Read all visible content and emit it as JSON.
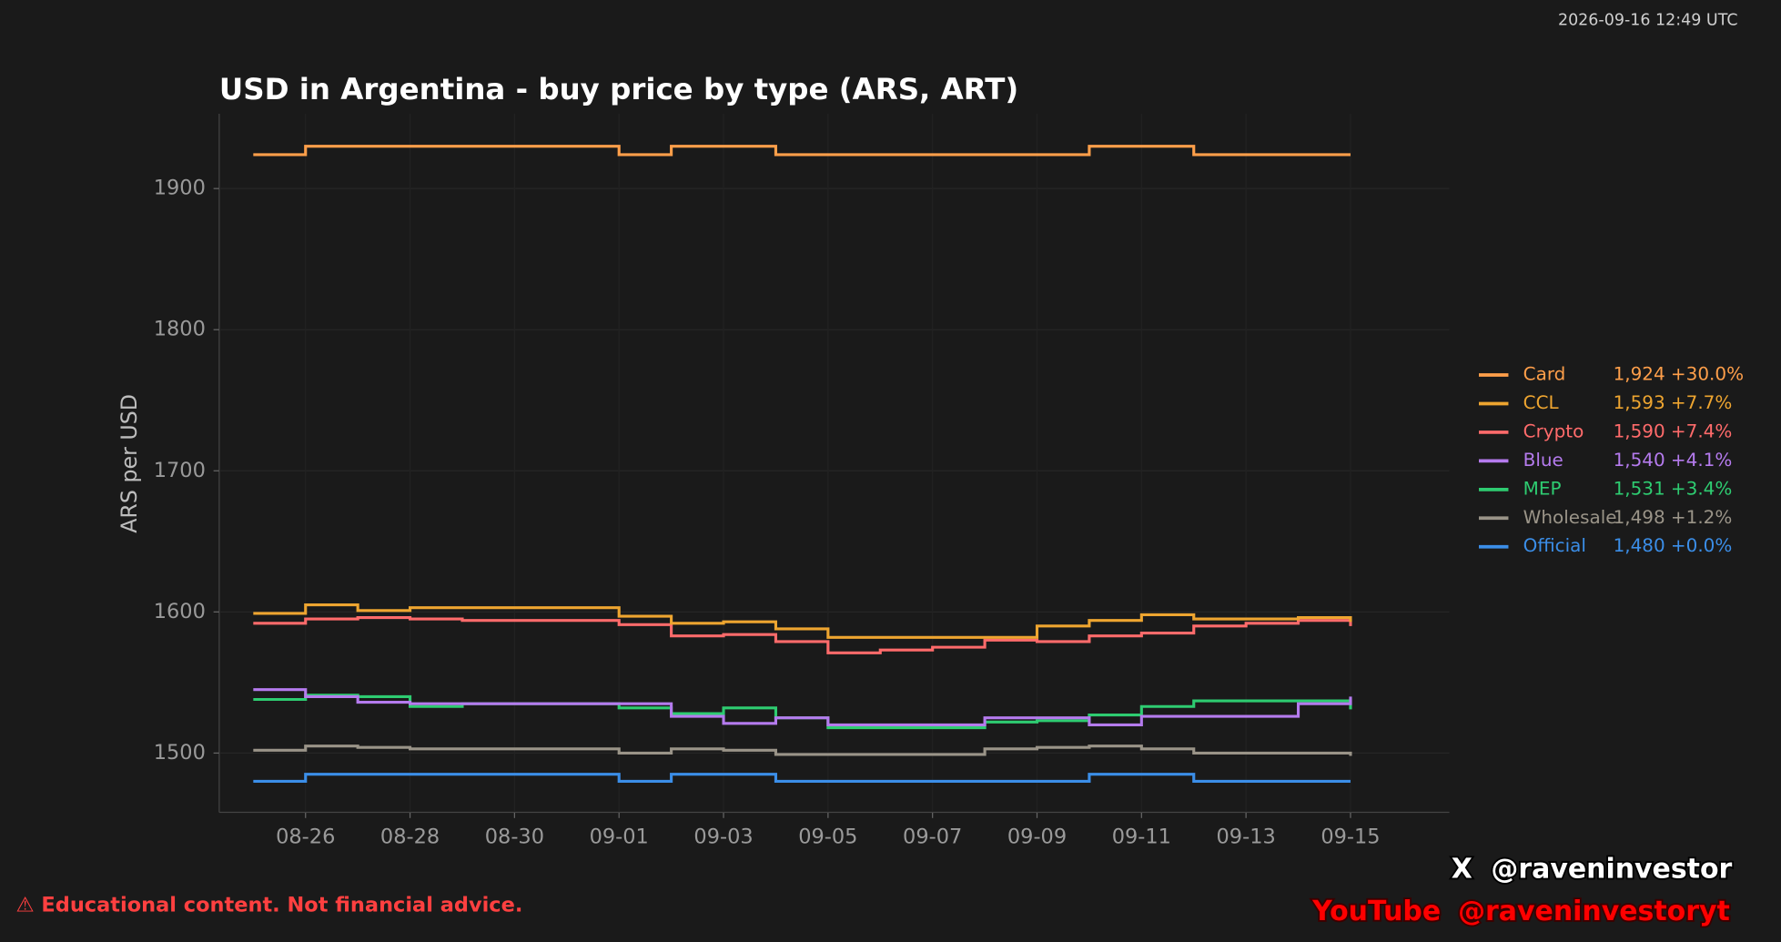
{
  "timestamp": "2026-09-16 12:49 UTC",
  "chart_data": {
    "type": "line",
    "step": true,
    "title": "USD in Argentina - buy price by type (ARS, ART)",
    "ylabel": "ARS per USD",
    "x": [
      "08-25",
      "08-26",
      "08-27",
      "08-28",
      "08-29",
      "08-30",
      "08-31",
      "09-01",
      "09-02",
      "09-03",
      "09-04",
      "09-05",
      "09-06",
      "09-07",
      "09-08",
      "09-09",
      "09-10",
      "09-11",
      "09-12",
      "09-13",
      "09-14",
      "09-15"
    ],
    "xlim": [
      "08-25",
      "09-16"
    ],
    "xticks": [
      "08-26",
      "08-28",
      "08-30",
      "09-01",
      "09-03",
      "09-05",
      "09-07",
      "09-09",
      "09-11",
      "09-13",
      "09-15"
    ],
    "ylim": [
      1458,
      1953
    ],
    "yticks": [
      1500,
      1600,
      1700,
      1800,
      1900
    ],
    "grid": true,
    "legend": "right",
    "series": [
      {
        "name": "Card",
        "color": "#ff9f4a",
        "value_label": "1,924",
        "change_label": "+30.0%",
        "values": [
          1924,
          1930,
          1930,
          1930,
          1930,
          1930,
          1930,
          1924,
          1930,
          1930,
          1924,
          1924,
          1924,
          1924,
          1924,
          1924,
          1930,
          1930,
          1924,
          1924,
          1924,
          1924
        ]
      },
      {
        "name": "CCL",
        "color": "#eea530",
        "value_label": "1,593",
        "change_label": "+7.7%",
        "values": [
          1599,
          1605,
          1601,
          1603,
          1603,
          1603,
          1603,
          1597,
          1592,
          1593,
          1588,
          1582,
          1582,
          1582,
          1582,
          1590,
          1594,
          1598,
          1595,
          1595,
          1596,
          1593
        ]
      },
      {
        "name": "Crypto",
        "color": "#ff6b6b",
        "value_label": "1,590",
        "change_label": "+7.4%",
        "values": [
          1592,
          1595,
          1596,
          1595,
          1594,
          1594,
          1594,
          1591,
          1583,
          1584,
          1579,
          1571,
          1573,
          1575,
          1580,
          1579,
          1583,
          1585,
          1590,
          1592,
          1594,
          1590
        ]
      },
      {
        "name": "Blue",
        "color": "#b57bee",
        "value_label": "1,540",
        "change_label": "+4.1%",
        "values": [
          1545,
          1540,
          1536,
          1535,
          1535,
          1535,
          1535,
          1535,
          1526,
          1521,
          1525,
          1520,
          1520,
          1520,
          1525,
          1525,
          1520,
          1526,
          1526,
          1526,
          1535,
          1540
        ]
      },
      {
        "name": "MEP",
        "color": "#2ecc71",
        "value_label": "1,531",
        "change_label": "+3.4%",
        "values": [
          1538,
          1541,
          1540,
          1533,
          1535,
          1535,
          1535,
          1532,
          1528,
          1532,
          1525,
          1518,
          1518,
          1518,
          1522,
          1523,
          1527,
          1533,
          1537,
          1537,
          1537,
          1531
        ]
      },
      {
        "name": "Wholesale",
        "color": "#9a9488",
        "value_label": "1,498",
        "change_label": "+1.2%",
        "values": [
          1502,
          1505,
          1504,
          1503,
          1503,
          1503,
          1503,
          1500,
          1503,
          1502,
          1499,
          1499,
          1499,
          1499,
          1503,
          1504,
          1505,
          1503,
          1500,
          1500,
          1500,
          1498
        ]
      },
      {
        "name": "Official",
        "color": "#3b8ee8",
        "value_label": "1,480",
        "change_label": "+0.0%",
        "values": [
          1480,
          1485,
          1485,
          1485,
          1485,
          1485,
          1485,
          1480,
          1485,
          1485,
          1480,
          1480,
          1480,
          1480,
          1480,
          1480,
          1485,
          1485,
          1480,
          1480,
          1480,
          1480
        ]
      }
    ]
  },
  "footer": {
    "disclaimer": "⚠  Educational content. Not financial advice.",
    "x_icon": "X",
    "x_handle": "@raveninvestor",
    "youtube": "YouTube",
    "youtube_handle": "@raveninvestoryt"
  }
}
